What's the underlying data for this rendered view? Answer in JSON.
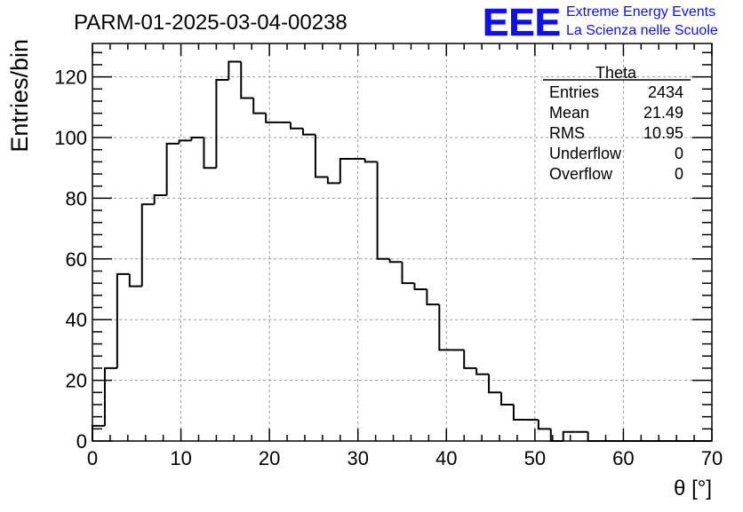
{
  "chart_data": {
    "type": "histogram",
    "title": "PARM-01-2025-03-04-00238",
    "xlabel": "θ [°]",
    "ylabel": "Entries/bin",
    "xlim": [
      0,
      70
    ],
    "ylim": [
      0,
      131
    ],
    "bin_width": 1.4,
    "values": [
      5,
      24,
      55,
      51,
      78,
      81,
      98,
      99,
      100,
      90,
      119,
      125,
      113,
      108,
      105,
      105,
      103,
      101,
      87,
      85,
      93,
      93,
      92,
      60,
      59,
      52,
      50,
      45,
      30,
      30,
      24,
      22,
      16,
      12,
      7,
      7,
      4,
      0,
      3,
      3,
      0,
      0,
      0,
      0,
      0,
      0,
      0,
      0,
      0,
      0
    ],
    "x_ticks": [
      "0",
      "10",
      "20",
      "30",
      "40",
      "50",
      "60",
      "70"
    ],
    "y_ticks": [
      "0",
      "20",
      "40",
      "60",
      "80",
      "100",
      "120"
    ],
    "grid": true,
    "stats_box": {
      "title": "Theta",
      "rows": [
        {
          "label": "Entries",
          "value": "2434"
        },
        {
          "label": "Mean",
          "value": "21.49"
        },
        {
          "label": "RMS",
          "value": "10.95"
        },
        {
          "label": "Underflow",
          "value": "0"
        },
        {
          "label": "Overflow",
          "value": "0"
        }
      ]
    }
  },
  "logo": {
    "letters": "EEE",
    "line1": "Extreme Energy Events",
    "line2": "La Scienza nelle Scuole",
    "color": "#1010ee"
  },
  "colors": {
    "histogram": "#000000",
    "grid": "#9a9a9a",
    "axis": "#000000"
  }
}
